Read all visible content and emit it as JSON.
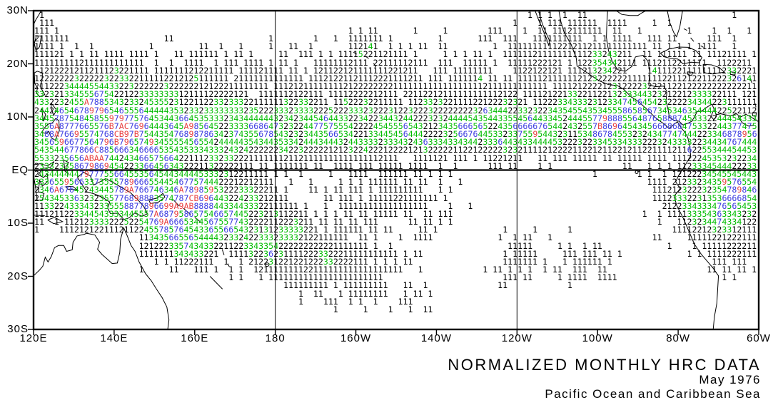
{
  "titles": {
    "main": "NORMALIZED MONTHLY HRC DATA",
    "date": "May 1976",
    "region": "Pacific Ocean and Caribbean Sea"
  },
  "axes": {
    "x": [
      {
        "label": "120E",
        "lon": 120
      },
      {
        "label": "140E",
        "lon": 140
      },
      {
        "label": "160E",
        "lon": 160
      },
      {
        "label": "180",
        "lon": 180
      },
      {
        "label": "160W",
        "lon": 200
      },
      {
        "label": "140W",
        "lon": 220
      },
      {
        "label": "120W",
        "lon": 240
      },
      {
        "label": "100W",
        "lon": 260
      },
      {
        "label": "80W",
        "lon": 280
      },
      {
        "label": "60W",
        "lon": 300
      }
    ],
    "y": [
      {
        "label": "30N",
        "lat": 30
      },
      {
        "label": "20N",
        "lat": 20
      },
      {
        "label": "10N",
        "lat": 10
      },
      {
        "label": "EQ",
        "lat": 0
      },
      {
        "label": "10S",
        "lat": -10
      },
      {
        "label": "20S",
        "lat": -20
      },
      {
        "label": "30S",
        "lat": -30
      }
    ]
  },
  "chart_data": {
    "type": "heatmap",
    "title": "NORMALIZED MONTHLY HRC DATA",
    "subtitle": "May 1976",
    "domain_label": "Pacific Ocean and Caribbean Sea",
    "x_ticks": [
      "120E",
      "140E",
      "160E",
      "180",
      "160W",
      "140W",
      "120W",
      "100W",
      "80W",
      "60W"
    ],
    "y_ticks": [
      "30N",
      "20N",
      "10N",
      "EQ",
      "10S",
      "20S",
      "30S"
    ],
    "lon_range_deg_east": [
      120,
      300
    ],
    "lat_range_deg_north": [
      -30,
      30
    ],
    "meridian_gridlines": [
      "180",
      "120W"
    ],
    "equator_axis_line": true,
    "value_glyphs": "123456789ABCDE",
    "value_color_classes": {
      "1-2": "#000000",
      "3-5": "#00bc00",
      "6-8": "#3c3ce0",
      "9-14": "#e84040"
    },
    "grid_cells": {
      "cols": 145,
      "rows": 40
    },
    "generator": {
      "seed": 42,
      "empty_below": 1,
      "value_scale": [
        0.65,
        0.55
      ],
      "jitter": 0.9,
      "spike_prob": 0.015,
      "spike_add": 2.5,
      "blobs": [
        {
          "a": 5.2,
          "c": [
            134,
            13
          ],
          "s": [
            10,
            4.5
          ]
        },
        {
          "a": 5.5,
          "c": [
            130,
            6.5
          ],
          "s": [
            12,
            4
          ]
        },
        {
          "a": 4.2,
          "c": [
            150,
            6.5
          ],
          "s": [
            12,
            3.5
          ]
        },
        {
          "a": 4.2,
          "c": [
            174,
            7
          ],
          "s": [
            18,
            3.2
          ]
        },
        {
          "a": 4.2,
          "c": [
            212,
            7.5
          ],
          "s": [
            24,
            3
          ]
        },
        {
          "a": 4.6,
          "c": [
            243,
            8
          ],
          "s": [
            12,
            3
          ]
        },
        {
          "a": 8.2,
          "c": [
            267,
            9.5
          ],
          "s": [
            8,
            3.2
          ]
        },
        {
          "a": 6.0,
          "c": [
            131,
            -2
          ],
          "s": [
            9,
            5
          ]
        },
        {
          "a": 7.0,
          "c": [
            149,
            -5
          ],
          "s": [
            9,
            4
          ]
        },
        {
          "a": 4.4,
          "c": [
            163,
            -6
          ],
          "s": [
            10,
            4
          ]
        },
        {
          "a": 5.0,
          "c": [
            157,
            -12.5
          ],
          "s": [
            5,
            3
          ]
        },
        {
          "a": 3.3,
          "c": [
            178,
            -13
          ],
          "s": [
            20,
            4
          ],
          "rot": -14
        },
        {
          "a": 1.7,
          "c": [
            205,
            16.5
          ],
          "s": [
            26,
            4.5
          ]
        },
        {
          "a": 1.6,
          "c": [
            203,
            21.5
          ],
          "s": [
            4,
            2.5
          ]
        },
        {
          "a": 1.6,
          "c": [
            160,
            15
          ],
          "s": [
            9,
            4
          ]
        },
        {
          "a": 1.4,
          "c": [
            122.5,
            24
          ],
          "s": [
            3,
            3.5
          ]
        },
        {
          "a": 1.6,
          "c": [
            209,
            -5.5
          ],
          "s": [
            10,
            4
          ]
        },
        {
          "a": 1.3,
          "c": [
            240,
            -17
          ],
          "s": [
            4,
            3
          ]
        },
        {
          "a": 1.2,
          "c": [
            258,
            -17
          ],
          "s": [
            5,
            3
          ]
        },
        {
          "a": 1.6,
          "c": [
            285,
            17
          ],
          "s": [
            13,
            5.5
          ]
        },
        {
          "a": 1.6,
          "c": [
            253,
            21
          ],
          "s": [
            10,
            5
          ]
        },
        {
          "a": 2.6,
          "c": [
            262.5,
            20.5
          ],
          "s": [
            2.5,
            2.5
          ]
        },
        {
          "a": 4.2,
          "c": [
            281,
            10
          ],
          "s": [
            5,
            3
          ]
        },
        {
          "a": 6.0,
          "c": [
            297,
            -2.5
          ],
          "s": [
            7,
            5
          ]
        },
        {
          "a": 3.0,
          "c": [
            285,
            -5
          ],
          "s": [
            6,
            4
          ]
        },
        {
          "a": 2.4,
          "c": [
            293,
            -10
          ],
          "s": [
            5,
            5
          ]
        },
        {
          "a": 1.7,
          "c": [
            294,
            16
          ],
          "s": [
            4,
            4
          ]
        },
        {
          "a": 5.5,
          "c": [
            295,
            6.5
          ],
          "s": [
            9,
            2.8
          ]
        }
      ],
      "masks": [
        {
          "lon": [
            120,
            146.5
          ],
          "lat": [
            -30,
            -11.5
          ],
          "f": 0.05
        },
        {
          "lon": [
            146.5,
            151.5
          ],
          "lat": [
            -30,
            -19
          ],
          "f": 0.12
        }
      ]
    }
  }
}
